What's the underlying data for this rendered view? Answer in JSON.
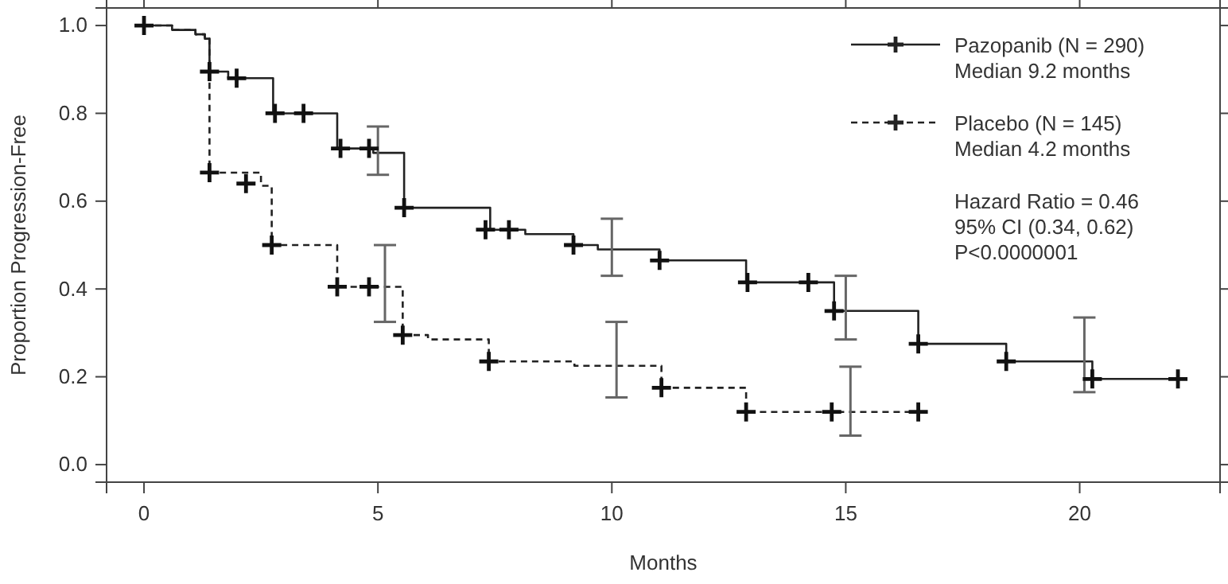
{
  "chart_data": {
    "type": "step",
    "xlabel": "Months",
    "ylabel": "Proportion Progression-Free",
    "xlim": [
      -0.8,
      23
    ],
    "ylim": [
      -0.04,
      1.04
    ],
    "xticks": [
      0,
      5,
      10,
      15,
      20
    ],
    "yticks": [
      {
        "value": 0,
        "label": "0.0"
      },
      {
        "value": 0.2,
        "label": "0.2"
      },
      {
        "value": 0.4,
        "label": "0.4"
      },
      {
        "value": 0.6,
        "label": "0.6"
      },
      {
        "value": 0.8,
        "label": "0.8"
      },
      {
        "value": 1,
        "label": "1.0"
      }
    ],
    "grid": false,
    "legend": "top right",
    "marker": "cross",
    "annotations": [
      "Hazard Ratio = 0.46",
      "95% CI (0.34, 0.62)",
      "P<0.0000001"
    ],
    "series": [
      {
        "name": "Pazopanib (N = 290)\nMedian 9.2 months",
        "color": "#222222",
        "line_style": "solid",
        "marker": "none",
        "x": [
          0,
          0.6,
          1.1,
          1.3,
          1.4,
          1.8,
          2.76,
          4.13,
          4.9,
          5.0,
          5.56,
          7.4,
          8.15,
          9.18,
          9.7,
          10.0,
          11.02,
          12.87,
          14.75,
          15.0,
          16.55,
          18.43,
          20.1,
          20.27,
          22.1
        ],
        "values": [
          1.0,
          0.99,
          0.98,
          0.97,
          0.895,
          0.88,
          0.8,
          0.72,
          0.71,
          0.71,
          0.585,
          0.535,
          0.525,
          0.5,
          0.49,
          0.49,
          0.465,
          0.415,
          0.35,
          0.35,
          0.275,
          0.235,
          0.235,
          0.195,
          0.195
        ],
        "errors": [
          null,
          null,
          null,
          null,
          null,
          null,
          null,
          null,
          null,
          [
            0.66,
            0.77
          ],
          null,
          null,
          null,
          null,
          null,
          [
            0.43,
            0.56
          ],
          null,
          null,
          null,
          [
            0.285,
            0.43
          ],
          null,
          null,
          [
            0.165,
            0.335
          ],
          null,
          null
        ]
      },
      {
        "name": "Placebo (N = 145)\nMedian 4.2 months",
        "color": "#222222",
        "line_style": "dashed",
        "marker": "none",
        "x": [
          0,
          0.6,
          1.1,
          1.3,
          1.4,
          2.5,
          2.73,
          4.13,
          5.15,
          5.53,
          6.07,
          7.37,
          9.2,
          10.1,
          11.06,
          12.87,
          15.1,
          16.55
        ],
        "values": [
          1.0,
          0.99,
          0.98,
          0.97,
          0.665,
          0.635,
          0.5,
          0.405,
          0.405,
          0.295,
          0.285,
          0.235,
          0.225,
          0.225,
          0.175,
          0.12,
          0.12,
          0.12
        ],
        "errors": [
          null,
          null,
          null,
          null,
          null,
          null,
          null,
          null,
          [
            0.325,
            0.5
          ],
          null,
          null,
          null,
          null,
          [
            0.153,
            0.325
          ],
          null,
          null,
          [
            0.066,
            0.223
          ],
          null
        ]
      },
      {
        "type": "scatter",
        "color": "#111111",
        "x": [
          0,
          1.4,
          1.98,
          2.8,
          3.41,
          4.2,
          4.81,
          5.56,
          7.3,
          7.8,
          9.18,
          11.02,
          12.9,
          14.2,
          14.75,
          16.55,
          18.43,
          20.27,
          22.1
        ],
        "values": [
          1.0,
          0.895,
          0.88,
          0.8,
          0.8,
          0.72,
          0.72,
          0.585,
          0.535,
          0.535,
          0.5,
          0.465,
          0.415,
          0.415,
          0.35,
          0.275,
          0.235,
          0.195,
          0.195
        ]
      },
      {
        "type": "scatter",
        "color": "#111111",
        "x": [
          1.4,
          2.18,
          2.73,
          4.13,
          4.81,
          5.53,
          7.37,
          11.06,
          12.87,
          14.7,
          16.55
        ],
        "values": [
          0.665,
          0.64,
          0.5,
          0.405,
          0.405,
          0.295,
          0.235,
          0.175,
          0.12,
          0.12,
          0.12
        ]
      }
    ]
  }
}
